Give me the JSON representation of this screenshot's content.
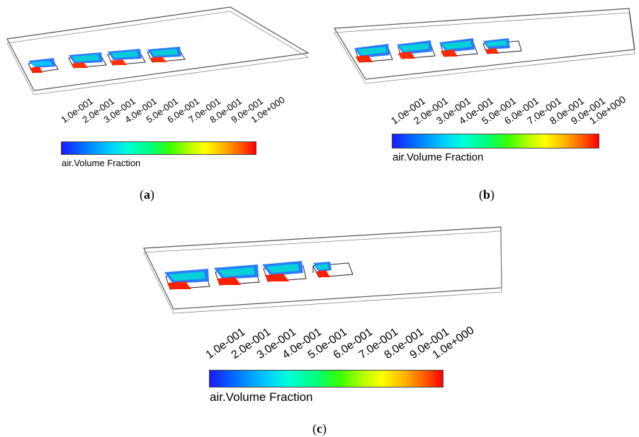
{
  "colorbar": {
    "ticks": [
      "1.0e-001",
      "2.0e-001",
      "3.0e-001",
      "4.0e-001",
      "5.0e-001",
      "6.0e-001",
      "7.0e-001",
      "8.0e-001",
      "9.0e-001",
      "1.0e+000"
    ],
    "title": "air.Volume Fraction"
  },
  "panels": [
    {
      "label": "a",
      "open": "(",
      "close": ")"
    },
    {
      "label": "b",
      "open": "(",
      "close": ")"
    },
    {
      "label": "c",
      "open": "(",
      "close": ")"
    }
  ],
  "colors": {
    "plate_edge": "#555555",
    "box_edge": "#222222",
    "low": "#1a1aff",
    "mid": "#00ffd8",
    "high": "#ff0000"
  }
}
